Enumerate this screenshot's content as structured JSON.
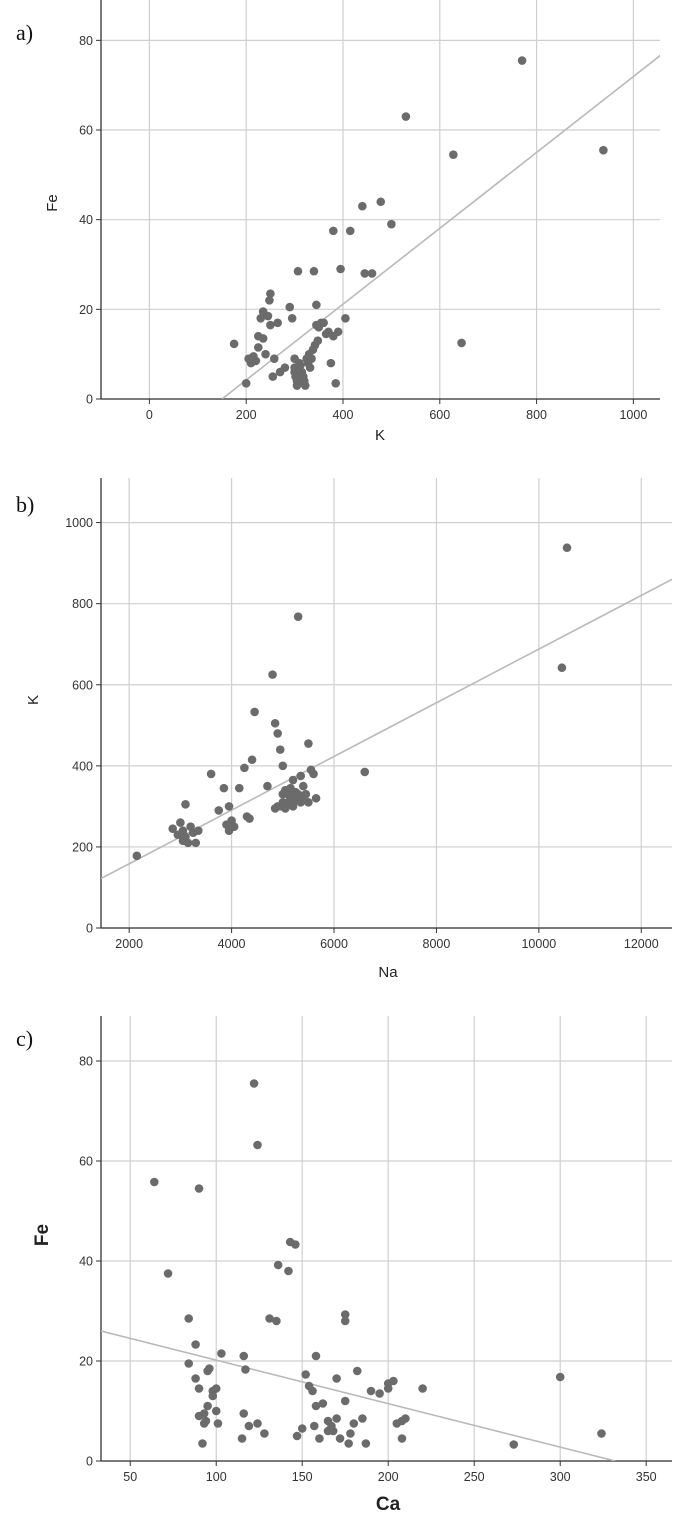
{
  "chart_data": [
    {
      "type": "scatter",
      "panel_label": "a)",
      "xlabel": "K",
      "ylabel": "Fe",
      "xlim": [
        -100,
        1055
      ],
      "ylim": [
        0,
        89
      ],
      "xticks": [
        0,
        200,
        400,
        600,
        800,
        1000
      ],
      "yticks": [
        0,
        20,
        40,
        60,
        80
      ],
      "grid": true,
      "fit_line": [
        [
          150,
          0
        ],
        [
          1060,
          77
        ]
      ],
      "points": [
        [
          175,
          12.3
        ],
        [
          200,
          3.5
        ],
        [
          205,
          9
        ],
        [
          210,
          8
        ],
        [
          215,
          9.5
        ],
        [
          220,
          8.5
        ],
        [
          225,
          11.5
        ],
        [
          225,
          14
        ],
        [
          230,
          18
        ],
        [
          235,
          19.5
        ],
        [
          235,
          13.5
        ],
        [
          240,
          10
        ],
        [
          245,
          18.5
        ],
        [
          248,
          22
        ],
        [
          250,
          23.5
        ],
        [
          250,
          16.5
        ],
        [
          255,
          5
        ],
        [
          258,
          9
        ],
        [
          265,
          17
        ],
        [
          270,
          6
        ],
        [
          280,
          7
        ],
        [
          290,
          20.5
        ],
        [
          295,
          18
        ],
        [
          300,
          9
        ],
        [
          300,
          7
        ],
        [
          300,
          6
        ],
        [
          302,
          5
        ],
        [
          305,
          4
        ],
        [
          305,
          3
        ],
        [
          307,
          28.5
        ],
        [
          310,
          8
        ],
        [
          312,
          7.5
        ],
        [
          315,
          6
        ],
        [
          318,
          5
        ],
        [
          320,
          4
        ],
        [
          322,
          3
        ],
        [
          325,
          9
        ],
        [
          328,
          8
        ],
        [
          330,
          10
        ],
        [
          332,
          7
        ],
        [
          335,
          9
        ],
        [
          338,
          11
        ],
        [
          340,
          28.5
        ],
        [
          342,
          12
        ],
        [
          345,
          16.5
        ],
        [
          345,
          21
        ],
        [
          348,
          13
        ],
        [
          350,
          16
        ],
        [
          355,
          17
        ],
        [
          360,
          17
        ],
        [
          365,
          14.5
        ],
        [
          370,
          15
        ],
        [
          375,
          8
        ],
        [
          380,
          14
        ],
        [
          380,
          37.5
        ],
        [
          385,
          3.5
        ],
        [
          390,
          15
        ],
        [
          395,
          29
        ],
        [
          405,
          18
        ],
        [
          415,
          37.5
        ],
        [
          440,
          43
        ],
        [
          445,
          28
        ],
        [
          460,
          28
        ],
        [
          478,
          44
        ],
        [
          500,
          39
        ],
        [
          530,
          63
        ],
        [
          628,
          54.5
        ],
        [
          645,
          12.5
        ],
        [
          770,
          75.5
        ],
        [
          938,
          55.5
        ]
      ]
    },
    {
      "type": "scatter",
      "panel_label": "b)",
      "xlabel": "Na",
      "ylabel": "K",
      "xlim": [
        1450,
        12600
      ],
      "ylim": [
        0,
        1110
      ],
      "xticks": [
        2000,
        4000,
        6000,
        8000,
        10000,
        12000
      ],
      "yticks": [
        0,
        200,
        400,
        600,
        800,
        1000
      ],
      "grid": true,
      "fit_line": [
        [
          1450,
          122
        ],
        [
          12600,
          860
        ]
      ],
      "points": [
        [
          2150,
          178
        ],
        [
          2850,
          245
        ],
        [
          2950,
          230
        ],
        [
          3000,
          260
        ],
        [
          3050,
          215
        ],
        [
          3050,
          240
        ],
        [
          3100,
          225
        ],
        [
          3100,
          305
        ],
        [
          3150,
          210
        ],
        [
          3200,
          250
        ],
        [
          3250,
          235
        ],
        [
          3300,
          210
        ],
        [
          3350,
          240
        ],
        [
          3600,
          380
        ],
        [
          3750,
          290
        ],
        [
          3850,
          345
        ],
        [
          3900,
          255
        ],
        [
          3950,
          300
        ],
        [
          3950,
          240
        ],
        [
          4000,
          265
        ],
        [
          4050,
          250
        ],
        [
          4150,
          345
        ],
        [
          4250,
          395
        ],
        [
          4300,
          275
        ],
        [
          4350,
          270
        ],
        [
          4400,
          415
        ],
        [
          4450,
          533
        ],
        [
          4700,
          350
        ],
        [
          4800,
          625
        ],
        [
          4850,
          295
        ],
        [
          4850,
          505
        ],
        [
          4900,
          480
        ],
        [
          4900,
          300
        ],
        [
          4950,
          440
        ],
        [
          4950,
          300
        ],
        [
          5000,
          400
        ],
        [
          5000,
          310
        ],
        [
          5000,
          330
        ],
        [
          5050,
          340
        ],
        [
          5050,
          295
        ],
        [
          5100,
          330
        ],
        [
          5100,
          310
        ],
        [
          5150,
          345
        ],
        [
          5150,
          320
        ],
        [
          5200,
          365
        ],
        [
          5200,
          300
        ],
        [
          5250,
          335
        ],
        [
          5250,
          315
        ],
        [
          5300,
          768
        ],
        [
          5300,
          330
        ],
        [
          5350,
          375
        ],
        [
          5350,
          310
        ],
        [
          5400,
          350
        ],
        [
          5400,
          325
        ],
        [
          5450,
          330
        ],
        [
          5500,
          455
        ],
        [
          5500,
          310
        ],
        [
          5550,
          390
        ],
        [
          5600,
          380
        ],
        [
          5650,
          320
        ],
        [
          6600,
          385
        ],
        [
          10450,
          642
        ],
        [
          10550,
          938
        ]
      ]
    },
    {
      "type": "scatter",
      "panel_label": "c)",
      "xlabel": "Ca",
      "ylabel": "Fe",
      "xlim": [
        33,
        365
      ],
      "ylim": [
        0,
        89
      ],
      "xticks": [
        50,
        100,
        150,
        200,
        250,
        300,
        350
      ],
      "yticks": [
        0,
        20,
        40,
        60,
        80
      ],
      "grid": true,
      "fit_line": [
        [
          33,
          26
        ],
        [
          332,
          0
        ]
      ],
      "points": [
        [
          64,
          55.8
        ],
        [
          72,
          37.5
        ],
        [
          84,
          28.5
        ],
        [
          84,
          19.5
        ],
        [
          88,
          16.5
        ],
        [
          88,
          23.3
        ],
        [
          90,
          54.5
        ],
        [
          90,
          14.5
        ],
        [
          90,
          9
        ],
        [
          92,
          3.5
        ],
        [
          93,
          9.5
        ],
        [
          93,
          7.5
        ],
        [
          94,
          8
        ],
        [
          95,
          11
        ],
        [
          95,
          18
        ],
        [
          96,
          18.5
        ],
        [
          98,
          14
        ],
        [
          98,
          13
        ],
        [
          100,
          14.5
        ],
        [
          100,
          10
        ],
        [
          101,
          7.5
        ],
        [
          103,
          21.5
        ],
        [
          115,
          4.5
        ],
        [
          116,
          9.5
        ],
        [
          116,
          21
        ],
        [
          117,
          18.3
        ],
        [
          119,
          7
        ],
        [
          122,
          75.5
        ],
        [
          124,
          63.2
        ],
        [
          124,
          7.5
        ],
        [
          128,
          5.5
        ],
        [
          131,
          28.5
        ],
        [
          135,
          28
        ],
        [
          136,
          39.2
        ],
        [
          142,
          38
        ],
        [
          143,
          43.8
        ],
        [
          146,
          43.3
        ],
        [
          147,
          5
        ],
        [
          150,
          6.5
        ],
        [
          152,
          17.3
        ],
        [
          154,
          15
        ],
        [
          156,
          14
        ],
        [
          157,
          7
        ],
        [
          158,
          21
        ],
        [
          158,
          11
        ],
        [
          160,
          4.5
        ],
        [
          162,
          11.5
        ],
        [
          165,
          8
        ],
        [
          165,
          6
        ],
        [
          167,
          7
        ],
        [
          168,
          6
        ],
        [
          170,
          8.5
        ],
        [
          170,
          16.5
        ],
        [
          172,
          4.5
        ],
        [
          175,
          29.3
        ],
        [
          175,
          28
        ],
        [
          175,
          12
        ],
        [
          177,
          3.5
        ],
        [
          178,
          5.5
        ],
        [
          180,
          7.5
        ],
        [
          182,
          18
        ],
        [
          185,
          8.5
        ],
        [
          187,
          3.5
        ],
        [
          190,
          14
        ],
        [
          195,
          13.5
        ],
        [
          200,
          14.5
        ],
        [
          200,
          15.5
        ],
        [
          203,
          16
        ],
        [
          205,
          7.5
        ],
        [
          208,
          8
        ],
        [
          208,
          4.5
        ],
        [
          210,
          8.5
        ],
        [
          220,
          14.5
        ],
        [
          273,
          3.3
        ],
        [
          300,
          16.8
        ],
        [
          324,
          5.5
        ]
      ]
    }
  ]
}
